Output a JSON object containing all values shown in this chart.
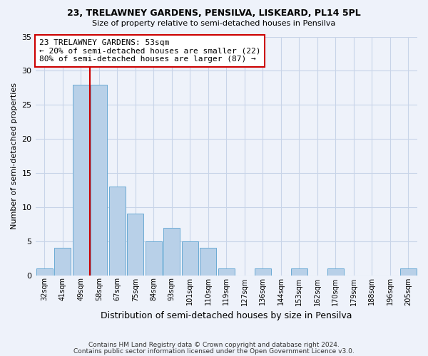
{
  "title": "23, TRELAWNEY GARDENS, PENSILVA, LISKEARD, PL14 5PL",
  "subtitle": "Size of property relative to semi-detached houses in Pensilva",
  "xlabel": "Distribution of semi-detached houses by size in Pensilva",
  "ylabel": "Number of semi-detached properties",
  "bar_labels": [
    "32sqm",
    "41sqm",
    "49sqm",
    "58sqm",
    "67sqm",
    "75sqm",
    "84sqm",
    "93sqm",
    "101sqm",
    "110sqm",
    "119sqm",
    "127sqm",
    "136sqm",
    "144sqm",
    "153sqm",
    "162sqm",
    "170sqm",
    "179sqm",
    "188sqm",
    "196sqm",
    "205sqm"
  ],
  "bar_values": [
    1,
    4,
    28,
    28,
    13,
    9,
    5,
    7,
    5,
    4,
    1,
    0,
    1,
    0,
    1,
    0,
    1,
    0,
    0,
    0,
    1
  ],
  "bar_color": "#b8d0e8",
  "bar_edge_color": "#6aaad4",
  "vline_x": 2.5,
  "vline_color": "#cc0000",
  "annotation_title": "23 TRELAWNEY GARDENS: 53sqm",
  "annotation_line1": "← 20% of semi-detached houses are smaller (22)",
  "annotation_line2": "80% of semi-detached houses are larger (87) →",
  "ylim": [
    0,
    35
  ],
  "yticks": [
    0,
    5,
    10,
    15,
    20,
    25,
    30,
    35
  ],
  "background_color": "#eef2fa",
  "grid_color": "#c8d4e8",
  "footnote1": "Contains HM Land Registry data © Crown copyright and database right 2024.",
  "footnote2": "Contains public sector information licensed under the Open Government Licence v3.0."
}
